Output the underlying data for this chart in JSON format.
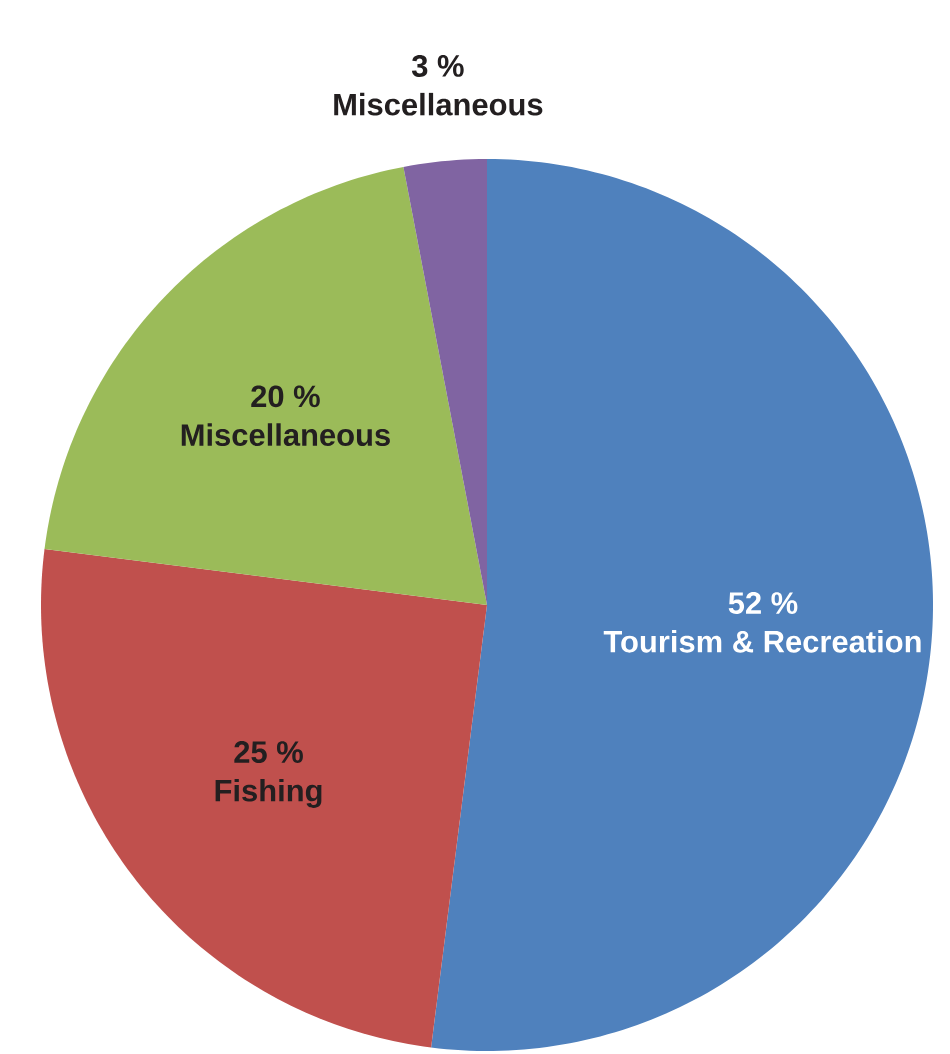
{
  "chart_data": {
    "type": "pie",
    "categories": [
      "Tourism & Recreation",
      "Fishing",
      "Miscellaneous",
      "Miscellaneous"
    ],
    "values": [
      52,
      25,
      20,
      3
    ],
    "colors": [
      "#4f81bd",
      "#c0504d",
      "#9bbb59",
      "#8064a2"
    ],
    "value_labels": [
      "52 %",
      "25 %",
      "20 %",
      "3 %"
    ]
  }
}
